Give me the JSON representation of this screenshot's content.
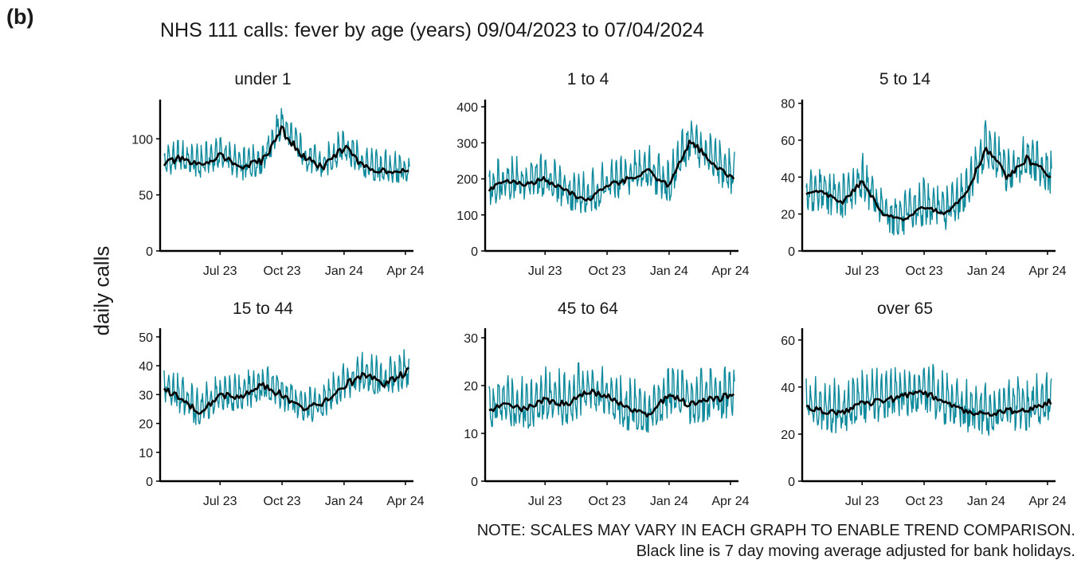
{
  "panel_letter": "(b)",
  "title": "NHS 111 calls: fever by age (years) 09/04/2023 to 07/04/2024",
  "ylabel": "daily calls",
  "notes": [
    "NOTE: SCALES MAY VARY IN EACH GRAPH TO ENABLE TREND COMPARISON.",
    "Black line is 7 day moving average adjusted for bank holidays."
  ],
  "colors": {
    "daily": "#0e8a9c",
    "average": "#000000",
    "axis": "#000000"
  },
  "chart_data": [
    {
      "type": "line",
      "title": "under 1",
      "x_range": [
        "2023-04-09",
        "2024-04-07"
      ],
      "ylim": [
        0,
        135
      ],
      "yticks": [
        0,
        50,
        100
      ],
      "xticks": [
        [
          "2023-07-01",
          "Jul 23"
        ],
        [
          "2023-10-01",
          "Oct 23"
        ],
        [
          "2024-01-01",
          "Jan 24"
        ],
        [
          "2024-04-01",
          "Apr 24"
        ]
      ],
      "series": [
        {
          "role": "daily",
          "x": [
            "2023-04-09",
            "2023-05-01",
            "2023-06-01",
            "2023-07-01",
            "2023-08-01",
            "2023-09-01",
            "2023-10-01",
            "2023-11-01",
            "2023-12-01",
            "2024-01-01",
            "2024-02-01",
            "2024-03-01",
            "2024-04-07"
          ],
          "y": [
            78,
            82,
            76,
            86,
            74,
            80,
            112,
            84,
            74,
            93,
            74,
            72,
            70
          ],
          "amplitude": 13
        },
        {
          "role": "average",
          "x": [
            "2023-04-09",
            "2023-05-01",
            "2023-06-01",
            "2023-07-01",
            "2023-08-01",
            "2023-09-01",
            "2023-10-01",
            "2023-11-01",
            "2023-12-01",
            "2024-01-01",
            "2024-02-01",
            "2024-03-01",
            "2024-04-07"
          ],
          "y": [
            78,
            82,
            76,
            86,
            74,
            80,
            108,
            84,
            74,
            93,
            74,
            72,
            70
          ]
        }
      ]
    },
    {
      "type": "line",
      "title": "1 to 4",
      "x_range": [
        "2023-04-09",
        "2024-04-07"
      ],
      "ylim": [
        0,
        420
      ],
      "yticks": [
        0,
        100,
        200,
        300,
        400
      ],
      "xticks": [
        [
          "2023-07-01",
          "Jul 23"
        ],
        [
          "2023-10-01",
          "Oct 23"
        ],
        [
          "2024-01-01",
          "Jan 24"
        ],
        [
          "2024-04-01",
          "Apr 24"
        ]
      ],
      "series": [
        {
          "role": "daily",
          "x": [
            "2023-04-09",
            "2023-05-01",
            "2023-06-01",
            "2023-07-01",
            "2023-08-01",
            "2023-09-01",
            "2023-10-01",
            "2023-11-01",
            "2023-12-01",
            "2024-01-01",
            "2024-02-01",
            "2024-03-01",
            "2024-04-07"
          ],
          "y": [
            170,
            195,
            185,
            200,
            165,
            140,
            180,
            200,
            220,
            180,
            305,
            250,
            200
          ],
          "amplitude": 55
        },
        {
          "role": "average",
          "x": [
            "2023-04-09",
            "2023-05-01",
            "2023-06-01",
            "2023-07-01",
            "2023-08-01",
            "2023-09-01",
            "2023-10-01",
            "2023-11-01",
            "2023-12-01",
            "2024-01-01",
            "2024-02-01",
            "2024-03-01",
            "2024-04-07"
          ],
          "y": [
            170,
            195,
            185,
            200,
            165,
            140,
            180,
            200,
            220,
            180,
            305,
            250,
            200
          ]
        }
      ]
    },
    {
      "type": "line",
      "title": "5 to 14",
      "x_range": [
        "2023-04-09",
        "2024-04-07"
      ],
      "ylim": [
        0,
        82
      ],
      "yticks": [
        0,
        20,
        40,
        60,
        80
      ],
      "xticks": [
        [
          "2023-07-01",
          "Jul 23"
        ],
        [
          "2023-10-01",
          "Oct 23"
        ],
        [
          "2024-01-01",
          "Jan 24"
        ],
        [
          "2024-04-01",
          "Apr 24"
        ]
      ],
      "series": [
        {
          "role": "daily",
          "x": [
            "2023-04-09",
            "2023-05-01",
            "2023-06-01",
            "2023-07-01",
            "2023-08-01",
            "2023-09-01",
            "2023-10-01",
            "2023-11-01",
            "2023-12-01",
            "2024-01-01",
            "2024-02-01",
            "2024-03-01",
            "2024-04-07"
          ],
          "y": [
            30,
            32,
            26,
            38,
            20,
            17,
            24,
            20,
            30,
            56,
            40,
            50,
            40
          ],
          "amplitude": 11
        },
        {
          "role": "average",
          "x": [
            "2023-04-09",
            "2023-05-01",
            "2023-06-01",
            "2023-07-01",
            "2023-08-01",
            "2023-09-01",
            "2023-10-01",
            "2023-11-01",
            "2023-12-01",
            "2024-01-01",
            "2024-02-01",
            "2024-03-01",
            "2024-04-07"
          ],
          "y": [
            30,
            32,
            26,
            38,
            20,
            17,
            24,
            20,
            30,
            56,
            40,
            50,
            40
          ]
        }
      ]
    },
    {
      "type": "line",
      "title": "15 to 44",
      "x_range": [
        "2023-04-09",
        "2024-04-07"
      ],
      "ylim": [
        0,
        53
      ],
      "yticks": [
        0,
        10,
        20,
        30,
        40,
        50
      ],
      "xticks": [
        [
          "2023-07-01",
          "Jul 23"
        ],
        [
          "2023-10-01",
          "Oct 23"
        ],
        [
          "2024-01-01",
          "Jan 24"
        ],
        [
          "2024-04-01",
          "Apr 24"
        ]
      ],
      "series": [
        {
          "role": "daily",
          "x": [
            "2023-04-09",
            "2023-05-01",
            "2023-06-01",
            "2023-07-01",
            "2023-08-01",
            "2023-09-01",
            "2023-10-01",
            "2023-11-01",
            "2023-12-01",
            "2024-01-01",
            "2024-02-01",
            "2024-03-01",
            "2024-04-07"
          ],
          "y": [
            32,
            29,
            24,
            30,
            29,
            33,
            30,
            25,
            27,
            33,
            37,
            34,
            38
          ],
          "amplitude": 6
        },
        {
          "role": "average",
          "x": [
            "2023-04-09",
            "2023-05-01",
            "2023-06-01",
            "2023-07-01",
            "2023-08-01",
            "2023-09-01",
            "2023-10-01",
            "2023-11-01",
            "2023-12-01",
            "2024-01-01",
            "2024-02-01",
            "2024-03-01",
            "2024-04-07"
          ],
          "y": [
            32,
            29,
            24,
            30,
            29,
            33,
            30,
            25,
            27,
            33,
            37,
            34,
            38
          ]
        }
      ]
    },
    {
      "type": "line",
      "title": "45 to 64",
      "x_range": [
        "2023-04-09",
        "2024-04-07"
      ],
      "ylim": [
        0,
        32
      ],
      "yticks": [
        0,
        10,
        20,
        30
      ],
      "xticks": [
        [
          "2023-07-01",
          "Jul 23"
        ],
        [
          "2023-10-01",
          "Oct 23"
        ],
        [
          "2024-01-01",
          "Jan 24"
        ],
        [
          "2024-04-01",
          "Apr 24"
        ]
      ],
      "series": [
        {
          "role": "daily",
          "x": [
            "2023-04-09",
            "2023-05-01",
            "2023-06-01",
            "2023-07-01",
            "2023-08-01",
            "2023-09-01",
            "2023-10-01",
            "2023-11-01",
            "2023-12-01",
            "2024-01-01",
            "2024-02-01",
            "2024-03-01",
            "2024-04-07"
          ],
          "y": [
            15,
            16,
            15,
            17,
            16,
            19,
            18,
            15,
            14,
            18,
            16,
            17,
            18
          ],
          "amplitude": 5
        },
        {
          "role": "average",
          "x": [
            "2023-04-09",
            "2023-05-01",
            "2023-06-01",
            "2023-07-01",
            "2023-08-01",
            "2023-09-01",
            "2023-10-01",
            "2023-11-01",
            "2023-12-01",
            "2024-01-01",
            "2024-02-01",
            "2024-03-01",
            "2024-04-07"
          ],
          "y": [
            15,
            16,
            15,
            17,
            16,
            19,
            18,
            15,
            14,
            18,
            16,
            17,
            18
          ]
        }
      ]
    },
    {
      "type": "line",
      "title": "over 65",
      "x_range": [
        "2023-04-09",
        "2024-04-07"
      ],
      "ylim": [
        0,
        65
      ],
      "yticks": [
        0,
        20,
        40,
        60
      ],
      "xticks": [
        [
          "2023-07-01",
          "Jul 23"
        ],
        [
          "2023-10-01",
          "Oct 23"
        ],
        [
          "2024-01-01",
          "Jan 24"
        ],
        [
          "2024-04-01",
          "Apr 24"
        ]
      ],
      "series": [
        {
          "role": "daily",
          "x": [
            "2023-04-09",
            "2023-05-01",
            "2023-06-01",
            "2023-07-01",
            "2023-08-01",
            "2023-09-01",
            "2023-10-01",
            "2023-11-01",
            "2023-12-01",
            "2024-01-01",
            "2024-02-01",
            "2024-03-01",
            "2024-04-07"
          ],
          "y": [
            32,
            30,
            29,
            33,
            34,
            36,
            38,
            33,
            30,
            28,
            30,
            30,
            34
          ],
          "amplitude": 10
        },
        {
          "role": "average",
          "x": [
            "2023-04-09",
            "2023-05-01",
            "2023-06-01",
            "2023-07-01",
            "2023-08-01",
            "2023-09-01",
            "2023-10-01",
            "2023-11-01",
            "2023-12-01",
            "2024-01-01",
            "2024-02-01",
            "2024-03-01",
            "2024-04-07"
          ],
          "y": [
            32,
            30,
            29,
            33,
            34,
            36,
            38,
            33,
            30,
            28,
            30,
            30,
            34
          ]
        }
      ]
    }
  ]
}
